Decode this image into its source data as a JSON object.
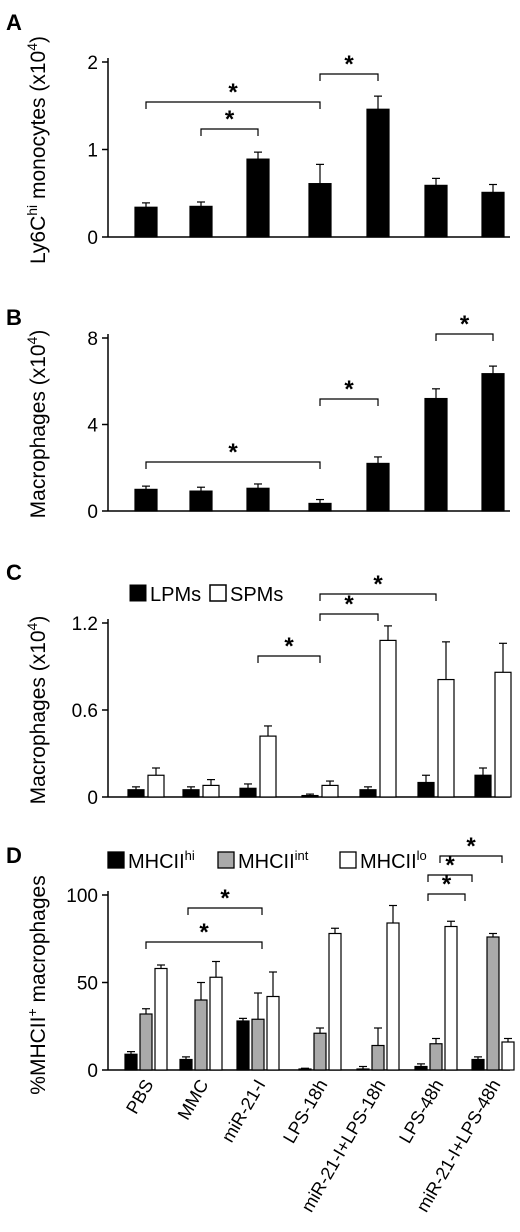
{
  "colors": {
    "black": "#000000",
    "grey": "#aaaaaa",
    "white": "#ffffff"
  },
  "chart_data": [
    {
      "panel_label": "A",
      "type": "bar",
      "ylabel": "Ly6Chi monocytes (x10^4)",
      "ylabel_parts": [
        "Ly6C",
        "hi",
        " monocytes (x10",
        "4",
        ")"
      ],
      "ylim": [
        0,
        2
      ],
      "yticks": [
        0,
        1,
        2
      ],
      "series": [
        {
          "color": "black",
          "values": [
            0.34,
            0.35,
            0.89,
            0.61,
            1.46,
            0.59,
            0.51
          ],
          "errors": [
            0.05,
            0.05,
            0.08,
            0.22,
            0.15,
            0.08,
            0.09
          ]
        }
      ],
      "significance": [
        [
          2,
          4
        ],
        [
          1,
          3
        ],
        [
          3,
          5
        ]
      ],
      "sig_symbol": "*"
    },
    {
      "panel_label": "B",
      "type": "bar",
      "ylabel": "Macrophages (x10^4)",
      "ylabel_parts": [
        "Macrophages (x10",
        "4",
        ")"
      ],
      "ylim": [
        0,
        8
      ],
      "yticks": [
        0,
        4,
        8
      ],
      "series": [
        {
          "color": "black",
          "values": [
            1.0,
            0.92,
            1.05,
            0.35,
            2.2,
            5.2,
            6.35
          ],
          "errors": [
            0.15,
            0.18,
            0.2,
            0.18,
            0.3,
            0.45,
            0.35
          ]
        }
      ],
      "significance": [
        [
          1,
          4
        ],
        [
          4,
          5
        ],
        [
          6,
          7
        ]
      ],
      "sig_symbol": "*"
    },
    {
      "panel_label": "C",
      "type": "bar",
      "ylabel": "Macrophages (x10^4)",
      "ylabel_parts": [
        "Macrophages (x10",
        "4",
        ")"
      ],
      "ylim": [
        0,
        1.2
      ],
      "yticks": [
        0,
        0.6,
        1.2
      ],
      "ytick_labels": [
        "0",
        "0.6",
        "1.2"
      ],
      "legend": [
        "LPMs",
        "SPMs"
      ],
      "series": [
        {
          "name": "LPMs",
          "color": "black",
          "values": [
            0.05,
            0.05,
            0.06,
            0.01,
            0.05,
            0.1,
            0.15
          ],
          "errors": [
            0.02,
            0.02,
            0.03,
            0.01,
            0.02,
            0.05,
            0.05
          ]
        },
        {
          "name": "SPMs",
          "color": "white",
          "values": [
            0.15,
            0.08,
            0.42,
            0.08,
            1.08,
            0.81,
            0.86
          ],
          "errors": [
            0.05,
            0.04,
            0.07,
            0.03,
            0.1,
            0.26,
            0.2
          ]
        }
      ],
      "significance": [
        [
          3,
          4
        ],
        [
          4,
          5
        ],
        [
          4,
          6
        ]
      ],
      "sig_symbol": "*"
    },
    {
      "panel_label": "D",
      "type": "bar",
      "ylabel": "%MHCII+ macrophages",
      "ylabel_parts": [
        "%MHCII",
        "+",
        " macrophages"
      ],
      "ylim": [
        0,
        100
      ],
      "yticks": [
        0,
        50,
        100
      ],
      "legend": [
        "MHCIIhi",
        "MHCIIint",
        "MHCIIlo"
      ],
      "legend_parts": [
        [
          "MHCII",
          "hi"
        ],
        [
          "MHCII",
          "int"
        ],
        [
          "MHCII",
          "lo"
        ]
      ],
      "categories": [
        "PBS",
        "MMC",
        "miR-21-I",
        "LPS-18h",
        "miR-21-I+LPS-18h",
        "LPS-48h",
        "miR-21-I+LPS-48h"
      ],
      "series": [
        {
          "name": "MHCIIhi",
          "color": "black",
          "values": [
            9,
            6,
            28,
            0.5,
            0.5,
            2,
            6
          ],
          "errors": [
            1.5,
            1.5,
            1.5,
            0.5,
            1.5,
            1.5,
            1.5
          ]
        },
        {
          "name": "MHCIIint",
          "color": "grey",
          "values": [
            32,
            40,
            29,
            21,
            14,
            15,
            76
          ],
          "errors": [
            3,
            10,
            15,
            3,
            10,
            3,
            2
          ]
        },
        {
          "name": "MHCIIlo",
          "color": "white",
          "values": [
            58,
            53,
            42,
            78,
            84,
            82,
            16
          ],
          "errors": [
            2,
            9,
            14,
            3,
            10,
            3,
            2
          ]
        }
      ],
      "significance": [
        [
          1,
          3
        ],
        [
          2,
          3
        ],
        [
          6,
          7
        ],
        [
          6,
          7
        ],
        [
          6,
          7
        ]
      ],
      "sig_symbol": "*"
    }
  ]
}
